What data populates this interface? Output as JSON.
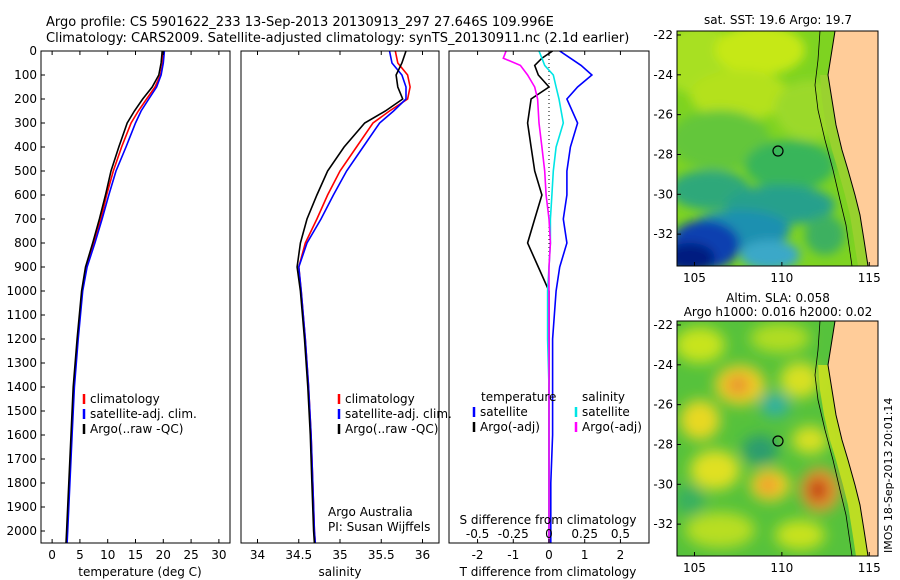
{
  "header": {
    "line1": "Argo profile: CS 5901622_233 13-Sep-2013 20130913_297 27.646S 109.996E",
    "line2": "Climatology: CARS2009. Satellite-adjusted climatology: synTS_20130911.nc (2.1d earlier)"
  },
  "colors": {
    "climatology": "#ff0000",
    "satellite": "#0000ff",
    "argo": "#000000",
    "sal_satellite": "#00e5e5",
    "sal_argo": "#ff00ff"
  },
  "chart_data": [
    {
      "type": "line",
      "xlabel": "temperature (deg C)",
      "xlim": [
        -2,
        32
      ],
      "xticks": [
        0,
        5,
        10,
        15,
        20,
        25,
        30
      ],
      "ylim": [
        0,
        2050
      ],
      "yticks": [
        0,
        100,
        200,
        300,
        400,
        500,
        600,
        700,
        800,
        900,
        1000,
        1100,
        1200,
        1300,
        1400,
        1500,
        1600,
        1700,
        1800,
        1900,
        2000
      ],
      "legend": [
        "climatology",
        "satellite-adj. clim.",
        "Argo(..raw -QC)"
      ],
      "series": [
        {
          "name": "climatology",
          "color": "#ff0000",
          "depth": [
            0,
            50,
            100,
            150,
            200,
            250,
            300,
            400,
            500,
            600,
            700,
            800,
            900,
            1000,
            1200,
            1400,
            1600,
            1800,
            2000,
            2050
          ],
          "values": [
            20,
            19.9,
            19.5,
            18.5,
            17,
            15.5,
            14.2,
            12.5,
            11,
            9.8,
            8.8,
            7.5,
            6.2,
            5.4,
            4.6,
            3.9,
            3.5,
            3.1,
            2.7,
            2.6
          ]
        },
        {
          "name": "satellite-adj. clim.",
          "color": "#0000ff",
          "depth": [
            0,
            50,
            100,
            150,
            200,
            250,
            300,
            400,
            500,
            600,
            700,
            800,
            900,
            1000,
            1200,
            1400,
            1600,
            1800,
            2000,
            2050
          ],
          "values": [
            20.2,
            20,
            19.6,
            18.8,
            17.4,
            16,
            15,
            13.3,
            11.5,
            10.2,
            9,
            7.7,
            6.3,
            5.5,
            4.7,
            4,
            3.6,
            3.2,
            2.8,
            2.7
          ]
        },
        {
          "name": "Argo(..raw -QC)",
          "color": "#000000",
          "depth": [
            0,
            50,
            100,
            150,
            200,
            250,
            300,
            400,
            500,
            600,
            700,
            800,
            900,
            1000,
            1200,
            1400,
            1600,
            1800,
            2000,
            2050
          ],
          "values": [
            19.8,
            19.6,
            19.2,
            18,
            16.3,
            14.8,
            13.5,
            12,
            10.6,
            9.6,
            8.5,
            7.3,
            6,
            5.3,
            4.5,
            3.8,
            3.4,
            3,
            2.6,
            2.5
          ]
        }
      ]
    },
    {
      "type": "line",
      "xlabel": "salinity",
      "xlim": [
        33.8,
        36.2
      ],
      "xticks": [
        34,
        34.5,
        35,
        35.5,
        36
      ],
      "ylim": [
        0,
        2050
      ],
      "legend": [
        "climatology",
        "satellite-adj. clim.",
        "Argo(..raw -QC)"
      ],
      "annotation": [
        "Argo Australia",
        "PI: Susan Wijffels"
      ],
      "series": [
        {
          "name": "climatology",
          "color": "#ff0000",
          "depth": [
            0,
            50,
            100,
            150,
            200,
            250,
            300,
            400,
            500,
            600,
            700,
            800,
            900,
            1000,
            1200,
            1400,
            1600,
            1800,
            2000,
            2050
          ],
          "values": [
            35.67,
            35.7,
            35.82,
            35.85,
            35.82,
            35.6,
            35.4,
            35.2,
            35,
            34.85,
            34.72,
            34.58,
            34.5,
            34.53,
            34.58,
            34.62,
            34.65,
            34.67,
            34.69,
            34.7
          ]
        },
        {
          "name": "satellite-adj. clim.",
          "color": "#0000ff",
          "depth": [
            0,
            50,
            100,
            150,
            200,
            250,
            300,
            400,
            500,
            600,
            700,
            800,
            900,
            1000,
            1200,
            1400,
            1600,
            1800,
            2000,
            2050
          ],
          "values": [
            35.6,
            35.63,
            35.75,
            35.8,
            35.8,
            35.65,
            35.48,
            35.28,
            35.08,
            34.92,
            34.77,
            34.6,
            34.5,
            34.53,
            34.58,
            34.62,
            34.65,
            34.67,
            34.69,
            34.7
          ]
        },
        {
          "name": "Argo(..raw -QC)",
          "color": "#000000",
          "depth": [
            0,
            50,
            100,
            150,
            200,
            250,
            300,
            400,
            500,
            600,
            700,
            800,
            900,
            1000,
            1200,
            1400,
            1600,
            1800,
            2000,
            2050
          ],
          "values": [
            35.8,
            35.75,
            35.68,
            35.7,
            35.76,
            35.55,
            35.3,
            35.05,
            34.85,
            34.72,
            34.6,
            34.52,
            34.48,
            34.52,
            34.57,
            34.61,
            34.64,
            34.66,
            34.68,
            34.69
          ]
        }
      ]
    },
    {
      "type": "line",
      "xlabel": "T difference from climatology",
      "xlabel_top": "S difference from climatology",
      "xlim": [
        -2.8,
        2.8
      ],
      "xticks": [
        -2,
        -1,
        0,
        1,
        2
      ],
      "xticks_top": [
        -0.5,
        -0.25,
        0,
        0.25,
        0.5
      ],
      "xticklabels_top": [
        "-0.5",
        "-0.25",
        "0",
        "0.25",
        "0.5"
      ],
      "ylim": [
        0,
        2050
      ],
      "legend_left_title": "temperature",
      "legend_right_title": "salinity",
      "legend": [
        "satellite",
        "Argo(-adj)",
        "satellite",
        "Argo(-adj)"
      ],
      "series": [
        {
          "name": "temperature satellite",
          "color": "#0000ff",
          "depth": [
            0,
            30,
            60,
            100,
            150,
            200,
            300,
            400,
            500,
            600,
            700,
            800,
            900,
            1000,
            1200,
            1400,
            1600,
            1800,
            2000,
            2050
          ],
          "values": [
            0.3,
            0.6,
            0.9,
            1.2,
            0.8,
            0.5,
            0.8,
            0.6,
            0.5,
            0.5,
            0.4,
            0.5,
            0.3,
            0.2,
            0.1,
            0.1,
            0.1,
            0.05,
            0.05,
            0.05
          ]
        },
        {
          "name": "temperature Argo(-adj)",
          "color": "#000000",
          "depth": [
            0,
            30,
            60,
            100,
            150,
            200,
            300,
            400,
            500,
            600,
            700,
            800,
            900,
            1000,
            1200,
            1400,
            1600,
            1800,
            2000,
            2050
          ],
          "values": [
            0.1,
            -0.2,
            -0.4,
            -0.3,
            0,
            -0.5,
            -0.6,
            -0.5,
            -0.4,
            -0.2,
            -0.4,
            -0.6,
            -0.3,
            0,
            0,
            0,
            0,
            0,
            0,
            0
          ]
        },
        {
          "name": "salinity satellite",
          "color": "#00e5e5",
          "depth": [
            0,
            30,
            60,
            100,
            150,
            200,
            300,
            400,
            500,
            600,
            700,
            800,
            900,
            1000,
            1200,
            1400,
            1600,
            1800,
            2000,
            2050
          ],
          "values": [
            -0.07,
            -0.05,
            -0.03,
            0.03,
            0.05,
            0.07,
            0.1,
            0.05,
            0.03,
            0.02,
            0.01,
            0.01,
            0,
            -0.01,
            -0.01,
            0,
            0,
            0,
            0,
            0
          ]
        },
        {
          "name": "salinity Argo(-adj)",
          "color": "#ff00ff",
          "depth": [
            0,
            30,
            60,
            100,
            150,
            200,
            300,
            400,
            500,
            600,
            700,
            800,
            900,
            1000,
            1200,
            1400,
            1600,
            1800,
            2000,
            2050
          ],
          "values": [
            -0.3,
            -0.32,
            -0.2,
            -0.15,
            -0.1,
            -0.08,
            -0.07,
            -0.05,
            -0.03,
            -0.02,
            0,
            0.01,
            0,
            0,
            0,
            0,
            0,
            0,
            0,
            0
          ]
        }
      ]
    },
    {
      "type": "heatmap",
      "title": "sat. SST: 19.6  Argo: 19.7",
      "xticks": [
        105,
        110,
        115
      ],
      "yticks": [
        -22,
        -24,
        -26,
        -28,
        -30,
        -32
      ],
      "marker": [
        110,
        -27.65
      ]
    },
    {
      "type": "heatmap",
      "title": [
        "Altim. SLA: 0.058",
        "Argo h1000: 0.016 h2000: 0.02"
      ],
      "xticks": [
        105,
        110,
        115
      ],
      "yticks": [
        -22,
        -24,
        -26,
        -28,
        -30,
        -32
      ],
      "marker": [
        110,
        -27.65
      ]
    }
  ],
  "footer": "IMOS 18-Sep-2013 20:01:14"
}
